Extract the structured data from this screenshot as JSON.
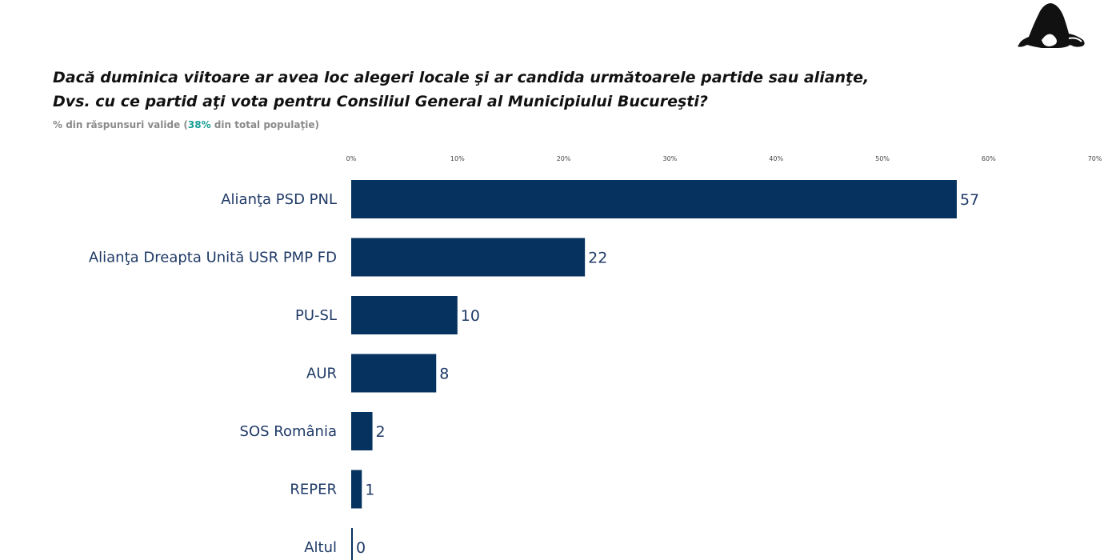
{
  "header": {
    "title_line_1": "Dacă duminica viitoare ar avea loc alegeri locale şi ar candida următoarele partide sau alianţe,",
    "title_line_2": "Dvs. cu ce partid aţi vota pentru Consiliul General al Municipiului Bucureşti?",
    "subtitle_prefix": "% din răspunsuri valide (",
    "subtitle_highlight": "38%",
    "subtitle_suffix": " din total populaţie)",
    "highlight_color": "#1a9e95",
    "logo_icon": "silhouette-logo-icon"
  },
  "chart_data": {
    "type": "bar",
    "orientation": "horizontal",
    "title": "Dacă duminica viitoare ar avea loc alegeri locale şi ar candida următoarele partide sau alianţe, Dvs. cu ce partid aţi vota pentru Consiliul General al Municipiului Bucureşti?",
    "subtitle": "% din răspunsuri valide (38% din total populaţie)",
    "categories": [
      "Alianţa PSD PNL",
      "Alianţa Dreapta Unită USR PMP FD",
      "PU-SL",
      "AUR",
      "SOS România",
      "REPER",
      "Altul"
    ],
    "values": [
      57,
      22,
      10,
      8,
      2,
      1,
      0
    ],
    "xlim": [
      0,
      70
    ],
    "ticks": [
      "0%",
      "10%",
      "20%",
      "30%",
      "40%",
      "50%",
      "60%",
      "70%"
    ],
    "tick_values": [
      0,
      10,
      20,
      30,
      40,
      50,
      60,
      70
    ],
    "bar_color": "#06325f",
    "grid": false,
    "legend": "none"
  }
}
